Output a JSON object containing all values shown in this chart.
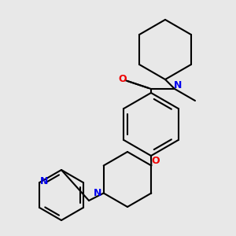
{
  "bg_color": "#e8e8e8",
  "bond_color": "#000000",
  "N_color": "#0000ee",
  "O_color": "#ee0000",
  "line_width": 1.5,
  "figsize": [
    3.0,
    3.0
  ],
  "dpi": 100,
  "xlim": [
    0,
    300
  ],
  "ylim": [
    0,
    300
  ]
}
